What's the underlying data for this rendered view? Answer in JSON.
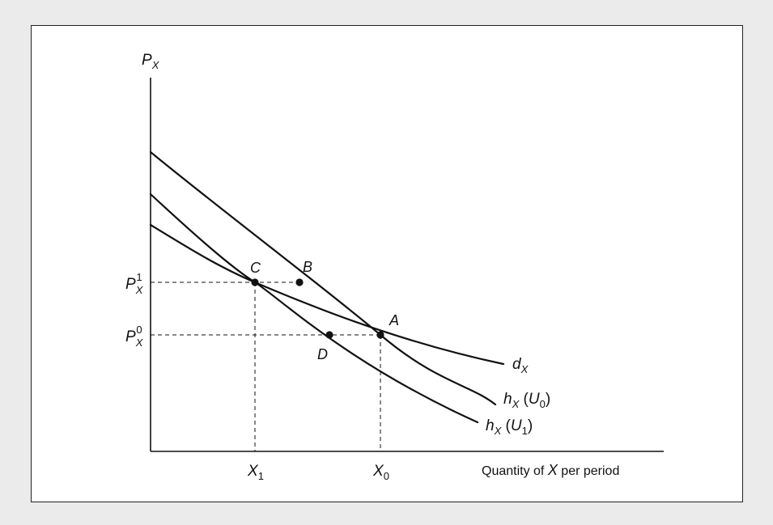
{
  "axes": {
    "y_label": "P",
    "y_label_sub": "X",
    "x_label_prefix": "Quantity of ",
    "x_label_var": "X",
    "x_label_suffix": " per period"
  },
  "prices": {
    "p1": {
      "base": "P",
      "sub": "X",
      "sup": "1"
    },
    "p0": {
      "base": "P",
      "sub": "X",
      "sup": "0"
    }
  },
  "quantities": {
    "x1": {
      "base": "X",
      "sub": "1"
    },
    "x0": {
      "base": "X",
      "sub": "0"
    }
  },
  "points": {
    "a": "A",
    "b": "B",
    "c": "C",
    "d": "D"
  },
  "curves": {
    "dx": {
      "base": "d",
      "sub": "X"
    },
    "hx_u0": {
      "base": "h",
      "sub": "X",
      "paren_open": " (",
      "arg": "U",
      "arg_sub": "0",
      "paren_close": ")"
    },
    "hx_u1": {
      "base": "h",
      "sub": "X",
      "paren_open": " (",
      "arg": "U",
      "arg_sub": "1",
      "paren_close": ")"
    }
  },
  "colors": {
    "background": "#ebebeb",
    "panel": "#ffffff",
    "ink": "#111111"
  }
}
